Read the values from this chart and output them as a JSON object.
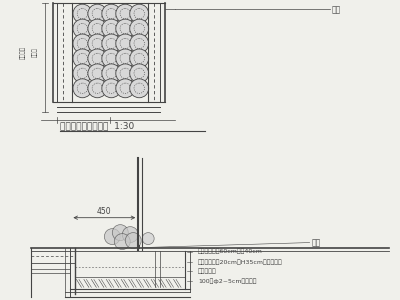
{
  "bg_color": "#f0f0eb",
  "line_color": "#444444",
  "title1": "花盆摆放平面示意图  1:30",
  "label_zhujian": "栏杆",
  "label_450": "450",
  "annotations_bottom": [
    "常春藤，花高60cm，冠40cm",
    "成品花盆，中20cm，H35cm，品字摆放",
    "无纺布一层",
    "100厚ф2~5cm机制碎石"
  ],
  "label_left_v1": "阳台外挑",
  "label_left_v2": "种植槽"
}
